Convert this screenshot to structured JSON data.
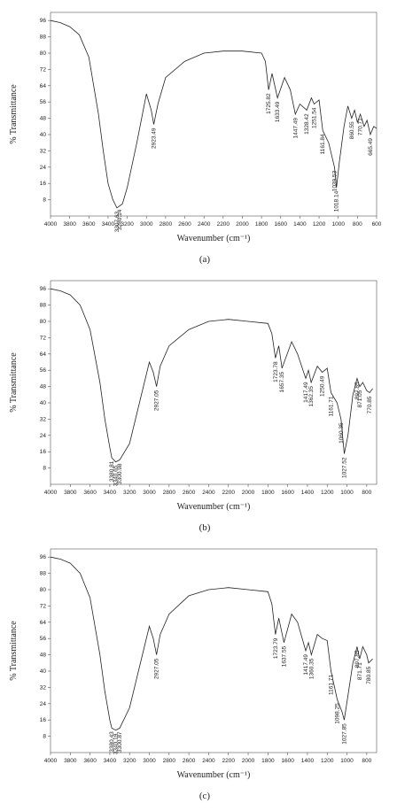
{
  "chart_data": [
    {
      "type": "line",
      "caption": "(a)",
      "x_label": "Wavenumber (cm⁻¹)",
      "y_label": "% Transmittance",
      "x": [
        4000,
        3900,
        3800,
        3700,
        3600,
        3500,
        3450,
        3400,
        3350,
        3307.63,
        3250,
        3200,
        3100,
        3000,
        2950,
        2923.49,
        2880,
        2800,
        2600,
        2400,
        2200,
        2000,
        1800,
        1760,
        1725.82,
        1690,
        1633.49,
        1560,
        1500,
        1447.49,
        1400,
        1328.42,
        1280,
        1251.54,
        1200,
        1161.84,
        1100,
        1039.53,
        1018.14,
        990,
        940,
        900,
        860,
        830,
        800,
        770,
        730,
        700,
        665.49,
        630,
        600
      ],
      "series": [
        {
          "color": "#222222",
          "values": [
            96,
            95,
            93,
            89,
            78,
            50,
            32,
            16,
            8,
            4,
            6,
            14,
            36,
            60,
            52,
            45,
            55,
            68,
            76,
            80,
            81,
            81,
            80,
            76,
            62,
            70,
            58,
            68,
            62,
            50,
            55,
            52,
            58,
            55,
            57,
            42,
            36,
            24,
            14,
            26,
            44,
            54,
            48,
            52,
            46,
            50,
            44,
            47,
            40,
            44,
            43
          ]
        }
      ],
      "xlim": [
        4000,
        600
      ],
      "ylim": [
        0,
        100
      ],
      "xticks": [
        4000,
        3800,
        3600,
        3400,
        3200,
        3000,
        2800,
        2600,
        2400,
        2200,
        2000,
        1800,
        1600,
        1400,
        1200,
        1000,
        800,
        600
      ],
      "yticks": [
        8,
        16,
        24,
        32,
        40,
        48,
        56,
        64,
        72,
        80,
        88,
        96
      ],
      "peaks": [
        3307.63,
        3280.14,
        2923.49,
        1725.82,
        1633.49,
        1447.49,
        1328.42,
        1251.54,
        1161.84,
        1039.53,
        1018.14,
        860.55,
        770.71,
        665.49
      ]
    },
    {
      "type": "line",
      "caption": "(b)",
      "x_label": "Wavenumber (cm⁻¹)",
      "y_label": "% Transmittance",
      "x": [
        4000,
        3900,
        3800,
        3700,
        3600,
        3500,
        3450,
        3400,
        3380,
        3340,
        3300,
        3200,
        3100,
        3000,
        2960,
        2927.05,
        2890,
        2800,
        2600,
        2400,
        2200,
        2000,
        1800,
        1760,
        1723.78,
        1690,
        1657.35,
        1560,
        1500,
        1417.49,
        1390,
        1362.35,
        1300,
        1250.49,
        1200,
        1161.71,
        1100,
        1060.35,
        1027.52,
        990,
        940,
        897.85,
        871.05,
        840,
        800,
        770.85,
        740
      ],
      "series": [
        {
          "color": "#222222",
          "values": [
            96,
            95,
            93,
            88,
            76,
            50,
            32,
            18,
            13,
            11,
            12,
            20,
            40,
            60,
            55,
            48,
            58,
            68,
            76,
            80,
            81,
            80,
            79,
            74,
            62,
            68,
            57,
            70,
            64,
            52,
            56,
            50,
            58,
            55,
            57,
            45,
            40,
            32,
            15,
            24,
            44,
            52,
            48,
            50,
            46,
            45,
            47
          ]
        }
      ],
      "xlim": [
        4000,
        700
      ],
      "ylim": [
        0,
        100
      ],
      "xticks": [
        4000,
        3800,
        3600,
        3400,
        3200,
        3000,
        2800,
        2600,
        2400,
        2200,
        2000,
        1800,
        1600,
        1400,
        1200,
        1000,
        800
      ],
      "yticks": [
        8,
        16,
        24,
        32,
        40,
        48,
        56,
        64,
        72,
        80,
        88,
        96
      ],
      "peaks": [
        3380.81,
        3340.65,
        3300.98,
        2927.05,
        1723.78,
        1657.35,
        1417.49,
        1362.35,
        1250.49,
        1161.71,
        1060.35,
        1027.52,
        897.85,
        871.05,
        770.85
      ]
    },
    {
      "type": "line",
      "caption": "(c)",
      "x_label": "Wavenumber (cm⁻¹)",
      "y_label": "% Transmittance",
      "x": [
        4000,
        3900,
        3800,
        3700,
        3600,
        3500,
        3450,
        3400,
        3380,
        3340,
        3300,
        3200,
        3100,
        3000,
        2960,
        2927.05,
        2890,
        2800,
        2600,
        2400,
        2200,
        2000,
        1800,
        1760,
        1723.79,
        1690,
        1637.55,
        1560,
        1500,
        1417.49,
        1390,
        1360.35,
        1300,
        1250,
        1200,
        1161.71,
        1098.25,
        1050,
        1027.85,
        990,
        940,
        897.85,
        871.71,
        840,
        800,
        780.85,
        740
      ],
      "series": [
        {
          "color": "#222222",
          "values": [
            96,
            95,
            93,
            88,
            76,
            48,
            30,
            16,
            12,
            11,
            12,
            22,
            42,
            62,
            56,
            48,
            58,
            68,
            77,
            80,
            81,
            80,
            79,
            73,
            58,
            66,
            54,
            68,
            64,
            50,
            54,
            48,
            58,
            56,
            55,
            40,
            26,
            20,
            16,
            28,
            44,
            52,
            46,
            52,
            48,
            44,
            46
          ]
        }
      ],
      "xlim": [
        4000,
        700
      ],
      "ylim": [
        0,
        100
      ],
      "xticks": [
        4000,
        3800,
        3600,
        3400,
        3200,
        3000,
        2800,
        2600,
        2400,
        2200,
        2000,
        1800,
        1600,
        1400,
        1200,
        1000,
        800
      ],
      "yticks": [
        8,
        16,
        24,
        32,
        40,
        48,
        56,
        64,
        72,
        80,
        88,
        96
      ],
      "peaks": [
        3380.43,
        3340.19,
        3300.87,
        2927.05,
        1723.79,
        1637.55,
        1417.49,
        1360.35,
        1161.71,
        1098.25,
        1027.85,
        897.85,
        871.71,
        780.85
      ]
    }
  ]
}
